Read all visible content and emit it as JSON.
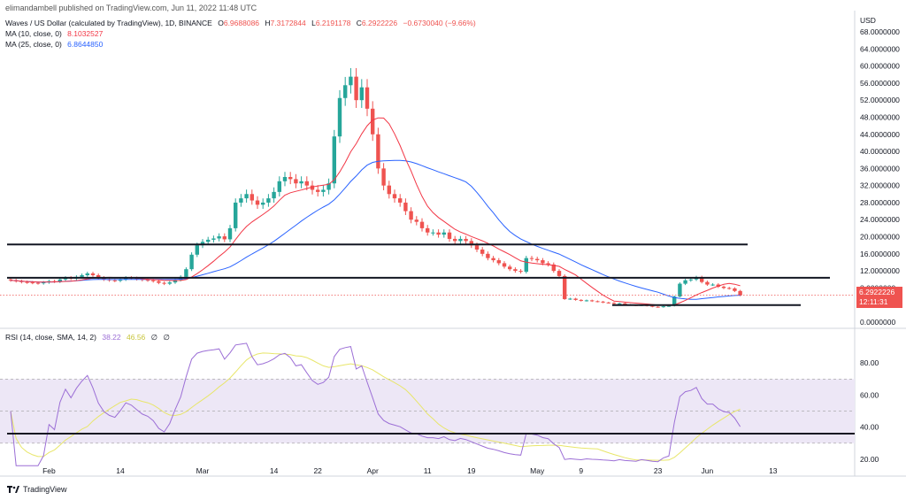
{
  "header": {
    "published_line": "elimandambell published on TradingView.com, Jun 11, 2022 11:48 UTC",
    "symbol_title": "Waves / US Dollar (calculated by TradingView), 1D, BINANCE",
    "ohlc": {
      "o_label": "O",
      "o": "6.9688086",
      "h_label": "H",
      "h": "7.3172844",
      "l_label": "L",
      "l": "6.2191178",
      "c_label": "C",
      "c": "6.2922226",
      "change": "−0.6730040 (−9.66%)"
    },
    "ma10_label": "MA (10, close, 0)",
    "ma10_value": "8.1032527",
    "ma25_label": "MA (25, close, 0)",
    "ma25_value": "6.8644850",
    "rsi_label": "RSI (14, close, SMA, 14, 2)",
    "rsi_value": "38.22",
    "rsi_sma_value": "46.56",
    "rsi_extra1": "∅",
    "rsi_extra2": "∅"
  },
  "price_tag": {
    "price": "6.2922226",
    "countdown": "12:11:31"
  },
  "brand": {
    "name": "TradingView"
  },
  "colors": {
    "up": "#26a69a",
    "down": "#ef5350",
    "ma10": "#f23645",
    "ma25": "#2962ff",
    "rsi": "#9c6fd6",
    "rsi_sma": "#e8e66a",
    "band": "#ede7f6",
    "trendline": "#131722"
  },
  "chart_data": [
    {
      "type": "candlestick",
      "title": "Waves / US Dollar (calculated by TradingView), 1D, BINANCE",
      "currency": "USD",
      "ylim": [
        0,
        68
      ],
      "y_ticks": [
        "68.0000000",
        "64.0000000",
        "60.0000000",
        "56.0000000",
        "52.0000000",
        "48.0000000",
        "44.0000000",
        "40.0000000",
        "36.0000000",
        "32.0000000",
        "28.0000000",
        "24.0000000",
        "20.0000000",
        "16.0000000",
        "12.0000000",
        "8.0000000",
        "4.0000000",
        "0.0000000"
      ],
      "x_tick_labels": [
        {
          "label": "Feb",
          "date": "2022-02-01"
        },
        {
          "label": "14",
          "date": "2022-02-14"
        },
        {
          "label": "Mar",
          "date": "2022-03-01"
        },
        {
          "label": "14",
          "date": "2022-03-14"
        },
        {
          "label": "22",
          "date": "2022-03-22"
        },
        {
          "label": "Apr",
          "date": "2022-04-01"
        },
        {
          "label": "11",
          "date": "2022-04-11"
        },
        {
          "label": "19",
          "date": "2022-04-19"
        },
        {
          "label": "May",
          "date": "2022-05-01"
        },
        {
          "label": "9",
          "date": "2022-05-09"
        },
        {
          "label": "23",
          "date": "2022-05-23"
        },
        {
          "label": "Jun",
          "date": "2022-06-01"
        },
        {
          "label": "13",
          "date": "2022-06-13"
        }
      ],
      "date_range": [
        "2022-01-25",
        "2022-06-11"
      ],
      "close": [
        9.8,
        9.6,
        9.4,
        9.3,
        9.2,
        9.1,
        9.3,
        9.6,
        9.5,
        10.0,
        10.4,
        10.2,
        10.6,
        11.0,
        11.4,
        11.0,
        10.4,
        10.0,
        9.8,
        9.7,
        10.0,
        10.4,
        10.3,
        10.1,
        9.9,
        9.8,
        9.6,
        9.2,
        9.0,
        9.3,
        9.9,
        10.6,
        12.4,
        15.8,
        18.0,
        18.8,
        19.3,
        19.6,
        20.1,
        19.4,
        22.0,
        28.0,
        29.0,
        30.0,
        28.5,
        27.5,
        28.0,
        29.0,
        30.5,
        33.0,
        34.0,
        33.5,
        32.5,
        33.0,
        32.0,
        31.0,
        30.5,
        31.0,
        32.5,
        43.5,
        52.5,
        55.5,
        57.5,
        52.0,
        55.0,
        50.0,
        44.0,
        36.0,
        32.0,
        30.0,
        29.0,
        28.0,
        26.0,
        24.0,
        23.5,
        22.0,
        21.0,
        21.0,
        20.5,
        21.0,
        19.5,
        19.0,
        19.5,
        19.0,
        18.0,
        17.0,
        16.0,
        15.0,
        14.5,
        13.8,
        13.0,
        12.4,
        12.0,
        11.8,
        15.0,
        14.8,
        14.5,
        13.8,
        13.5,
        12.0,
        10.8,
        5.4,
        5.5,
        5.2,
        5.0,
        5.1,
        4.9,
        4.8,
        4.6,
        4.5,
        4.3,
        4.4,
        4.1,
        4.0,
        3.9,
        4.0,
        3.8,
        3.6,
        3.5,
        3.7,
        3.8,
        6.0,
        9.0,
        9.8,
        10.0,
        10.5,
        9.4,
        8.8,
        8.8,
        8.3,
        8.0,
        7.9,
        7.3,
        6.29
      ],
      "moving_averages": [
        {
          "name": "MA (10, close, 0)",
          "last": "8.1032527"
        },
        {
          "name": "MA (25, close, 0)",
          "last": "6.8644850"
        }
      ],
      "horizontal_lines": [
        18.2,
        10.4,
        4.0
      ],
      "current_price": 6.2922226
    },
    {
      "type": "line",
      "title": "RSI (14, close, SMA, 14, 2)",
      "ylim": [
        15,
        95
      ],
      "y_ticks": [
        "80.00",
        "60.00",
        "40.00",
        "20.00"
      ],
      "band": [
        30,
        70
      ],
      "midline": 50,
      "series": [
        {
          "name": "RSI",
          "last": "38.22"
        },
        {
          "name": "SMA",
          "last": "46.56"
        }
      ],
      "horizontal_lines": [
        36
      ]
    }
  ]
}
